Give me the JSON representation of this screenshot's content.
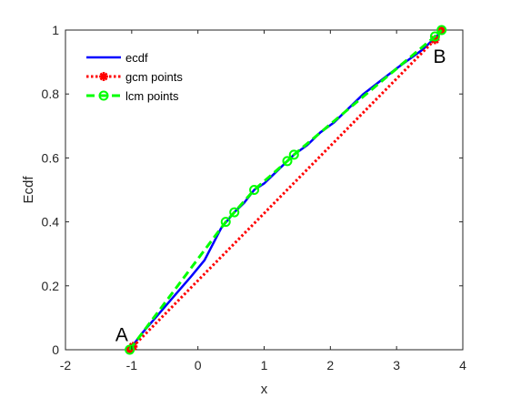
{
  "chart_data": {
    "type": "line",
    "xlabel": "x",
    "ylabel": "Ecdf",
    "xlim": [
      -2,
      4
    ],
    "ylim": [
      0,
      1
    ],
    "xticks": [
      "-2",
      "-1",
      "0",
      "1",
      "2",
      "3",
      "4"
    ],
    "yticks": [
      "0",
      "0.2",
      "0.4",
      "0.6",
      "0.8",
      "1"
    ],
    "grid": false,
    "legend_position": "top-left",
    "annotations": [
      {
        "text": "A",
        "x": -1.15,
        "y": 0.05
      },
      {
        "text": "B",
        "x": 3.65,
        "y": 0.92
      }
    ],
    "series": [
      {
        "name": "ecdf",
        "color": "#0000ff",
        "style": "solid",
        "x": [
          -1.03,
          -0.85,
          -0.6,
          -0.35,
          -0.1,
          0.1,
          0.35,
          0.55,
          0.7,
          0.85,
          1.0,
          1.2,
          1.35,
          1.45,
          1.65,
          1.85,
          2.05,
          2.3,
          2.5,
          2.75,
          3.0,
          3.2,
          3.4,
          3.55,
          3.65,
          3.7
        ],
        "y": [
          0.0,
          0.05,
          0.11,
          0.17,
          0.23,
          0.28,
          0.38,
          0.43,
          0.46,
          0.5,
          0.52,
          0.56,
          0.59,
          0.61,
          0.64,
          0.68,
          0.71,
          0.76,
          0.8,
          0.84,
          0.88,
          0.91,
          0.94,
          0.97,
          0.99,
          1.0
        ]
      },
      {
        "name": "gcm points",
        "color": "#ff0000",
        "style": "dotted",
        "marker": "star",
        "x": [
          -1.03,
          -0.98,
          3.58,
          3.68
        ],
        "y": [
          0.0,
          0.01,
          0.97,
          1.0
        ]
      },
      {
        "name": "lcm points",
        "color": "#00ff00",
        "style": "dashed",
        "marker": "circle",
        "x": [
          -1.03,
          0.42,
          0.55,
          0.85,
          1.35,
          1.45,
          3.58,
          3.68
        ],
        "y": [
          0.0,
          0.4,
          0.43,
          0.5,
          0.59,
          0.61,
          0.98,
          1.0
        ]
      }
    ]
  }
}
